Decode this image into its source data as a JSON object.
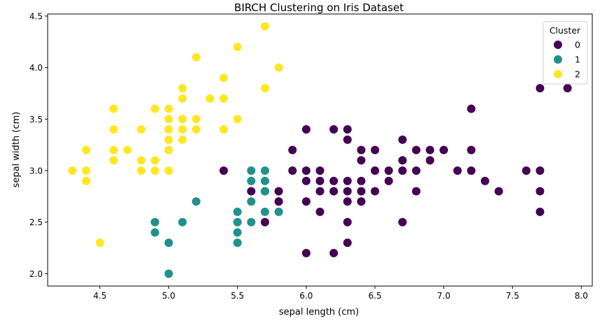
{
  "chart_data": {
    "type": "scatter",
    "title": "BIRCH Clustering on Iris Dataset",
    "xlabel": "sepal length (cm)",
    "ylabel": "sepal width (cm)",
    "xlim": [
      4.12,
      8.08
    ],
    "ylim": [
      1.88,
      4.52
    ],
    "xticks": [
      "4.5",
      "5.0",
      "5.5",
      "6.0",
      "6.5",
      "7.0",
      "7.5",
      "8.0"
    ],
    "yticks": [
      "2.0",
      "2.5",
      "3.0",
      "3.5",
      "4.0",
      "4.5"
    ],
    "grid": false,
    "legend": {
      "title": "Cluster",
      "placement": "top-right"
    },
    "series": [
      {
        "name": "0",
        "color": "#440154",
        "points": [
          [
            5.4,
            3.0
          ],
          [
            5.6,
            2.8
          ],
          [
            5.7,
            2.8
          ],
          [
            5.7,
            2.5
          ],
          [
            5.8,
            2.8
          ],
          [
            5.8,
            2.7
          ],
          [
            5.9,
            3.2
          ],
          [
            5.9,
            3.0
          ],
          [
            6.0,
            3.4
          ],
          [
            6.0,
            3.0
          ],
          [
            6.0,
            2.9
          ],
          [
            6.0,
            2.7
          ],
          [
            6.0,
            2.2
          ],
          [
            6.1,
            3.0
          ],
          [
            6.1,
            2.9
          ],
          [
            6.1,
            2.8
          ],
          [
            6.1,
            2.6
          ],
          [
            6.2,
            3.4
          ],
          [
            6.2,
            2.9
          ],
          [
            6.2,
            2.8
          ],
          [
            6.2,
            2.2
          ],
          [
            6.3,
            3.4
          ],
          [
            6.3,
            3.3
          ],
          [
            6.3,
            2.9
          ],
          [
            6.3,
            2.8
          ],
          [
            6.3,
            2.7
          ],
          [
            6.3,
            2.5
          ],
          [
            6.3,
            2.3
          ],
          [
            6.4,
            3.2
          ],
          [
            6.4,
            3.1
          ],
          [
            6.4,
            2.9
          ],
          [
            6.4,
            2.8
          ],
          [
            6.4,
            2.7
          ],
          [
            6.5,
            3.2
          ],
          [
            6.5,
            3.0
          ],
          [
            6.5,
            2.8
          ],
          [
            6.6,
            3.0
          ],
          [
            6.6,
            2.9
          ],
          [
            6.7,
            3.3
          ],
          [
            6.7,
            3.1
          ],
          [
            6.7,
            3.0
          ],
          [
            6.7,
            2.5
          ],
          [
            6.8,
            3.2
          ],
          [
            6.8,
            3.0
          ],
          [
            6.8,
            2.8
          ],
          [
            6.9,
            3.2
          ],
          [
            6.9,
            3.1
          ],
          [
            7.0,
            3.2
          ],
          [
            7.1,
            3.0
          ],
          [
            7.2,
            3.6
          ],
          [
            7.2,
            3.2
          ],
          [
            7.2,
            3.0
          ],
          [
            7.3,
            2.9
          ],
          [
            7.4,
            2.8
          ],
          [
            7.6,
            3.0
          ],
          [
            7.7,
            3.8
          ],
          [
            7.7,
            3.0
          ],
          [
            7.7,
            2.8
          ],
          [
            7.7,
            2.6
          ],
          [
            7.9,
            3.8
          ]
        ]
      },
      {
        "name": "1",
        "color": "#21918c",
        "points": [
          [
            4.9,
            2.5
          ],
          [
            4.9,
            2.4
          ],
          [
            5.0,
            2.3
          ],
          [
            5.0,
            2.0
          ],
          [
            5.1,
            2.5
          ],
          [
            5.2,
            2.7
          ],
          [
            5.5,
            2.6
          ],
          [
            5.5,
            2.5
          ],
          [
            5.5,
            2.4
          ],
          [
            5.5,
            2.3
          ],
          [
            5.6,
            3.0
          ],
          [
            5.6,
            2.9
          ],
          [
            5.6,
            2.7
          ],
          [
            5.6,
            2.5
          ],
          [
            5.7,
            3.0
          ],
          [
            5.7,
            2.9
          ],
          [
            5.7,
            2.8
          ],
          [
            5.7,
            2.6
          ],
          [
            5.8,
            2.6
          ]
        ]
      },
      {
        "name": "2",
        "color": "#fde725",
        "points": [
          [
            4.3,
            3.0
          ],
          [
            4.4,
            3.2
          ],
          [
            4.4,
            3.0
          ],
          [
            4.4,
            2.9
          ],
          [
            4.5,
            2.3
          ],
          [
            4.6,
            3.6
          ],
          [
            4.6,
            3.4
          ],
          [
            4.6,
            3.2
          ],
          [
            4.6,
            3.1
          ],
          [
            4.7,
            3.2
          ],
          [
            4.8,
            3.4
          ],
          [
            4.8,
            3.1
          ],
          [
            4.8,
            3.0
          ],
          [
            4.9,
            3.6
          ],
          [
            4.9,
            3.1
          ],
          [
            4.9,
            3.0
          ],
          [
            5.0,
            3.6
          ],
          [
            5.0,
            3.5
          ],
          [
            5.0,
            3.4
          ],
          [
            5.0,
            3.3
          ],
          [
            5.0,
            3.2
          ],
          [
            5.0,
            3.0
          ],
          [
            5.1,
            3.8
          ],
          [
            5.1,
            3.7
          ],
          [
            5.1,
            3.5
          ],
          [
            5.1,
            3.4
          ],
          [
            5.1,
            3.3
          ],
          [
            5.2,
            4.1
          ],
          [
            5.2,
            3.5
          ],
          [
            5.2,
            3.4
          ],
          [
            5.3,
            3.7
          ],
          [
            5.4,
            3.9
          ],
          [
            5.4,
            3.7
          ],
          [
            5.4,
            3.4
          ],
          [
            5.5,
            4.2
          ],
          [
            5.5,
            3.5
          ],
          [
            5.7,
            4.4
          ],
          [
            5.7,
            3.8
          ],
          [
            5.8,
            4.0
          ]
        ]
      }
    ]
  }
}
